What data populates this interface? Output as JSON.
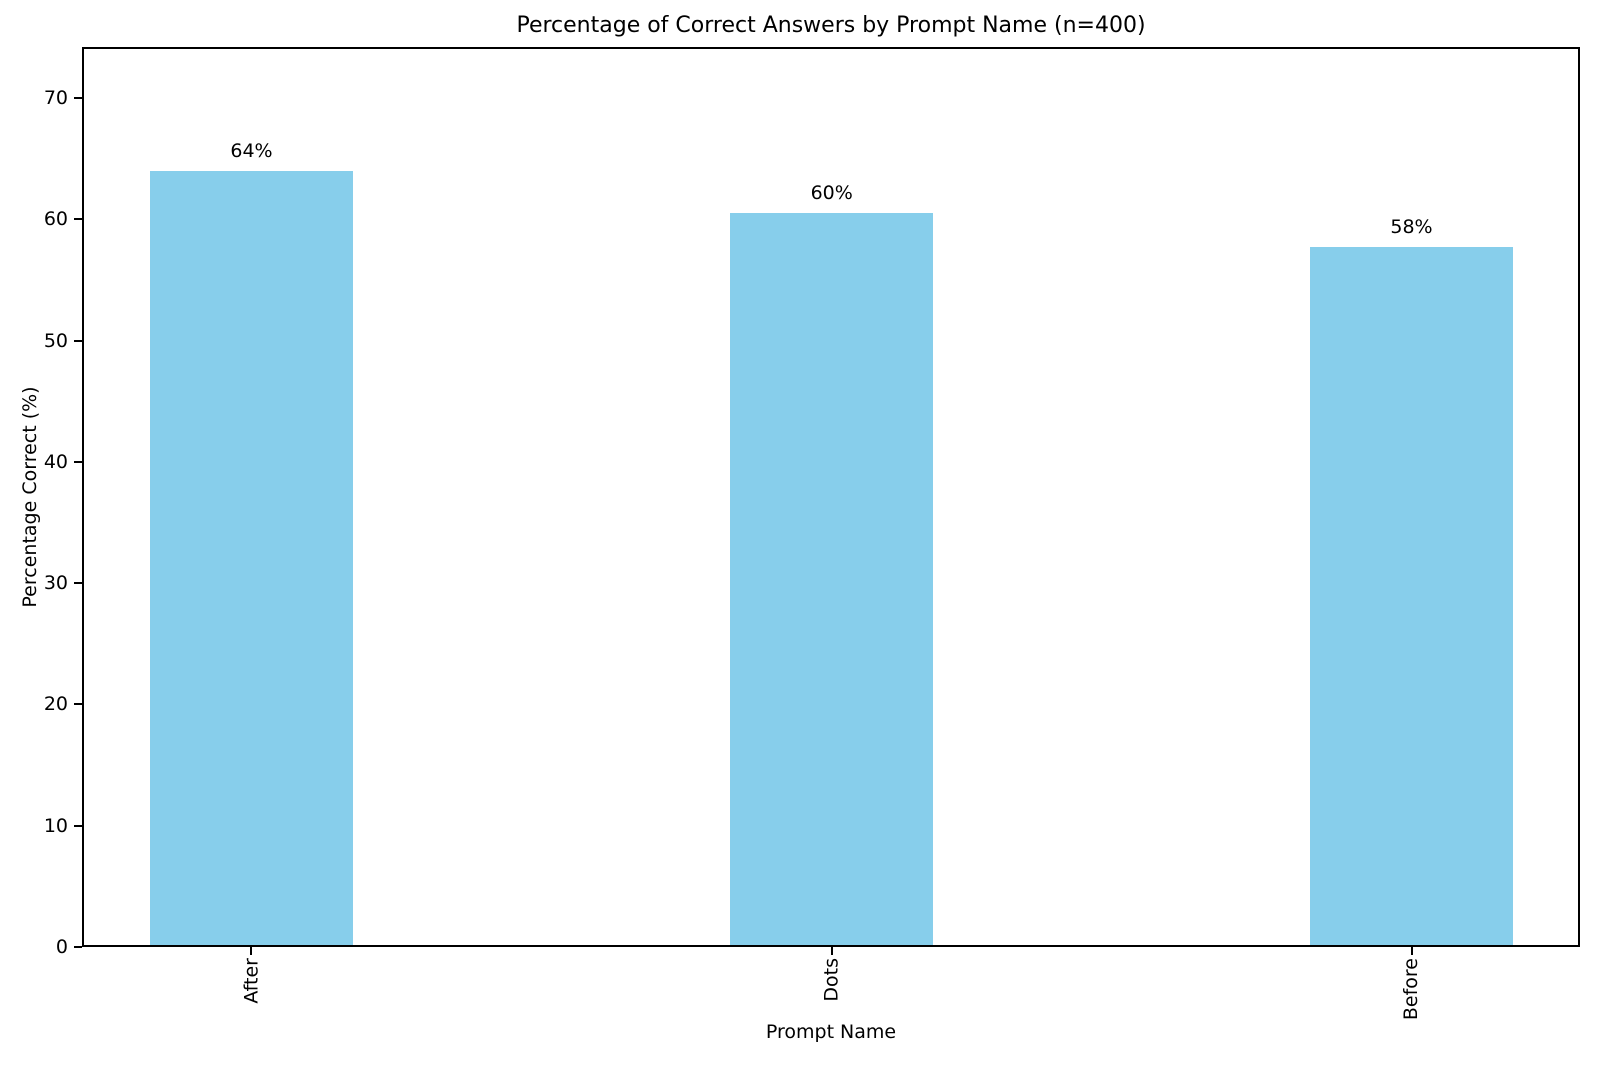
{
  "chart_data": {
    "type": "bar",
    "title": "Percentage of Correct Answers by Prompt Name (n=400)",
    "xlabel": "Prompt Name",
    "ylabel": "Percentage Correct (%)",
    "categories": [
      "After",
      "Dots",
      "Before"
    ],
    "values": [
      64.0,
      60.5,
      57.75
    ],
    "bar_labels": [
      "64%",
      "60%",
      "58%"
    ],
    "n": 400,
    "bar_color": "#87ceeb",
    "axis_color": "#000000",
    "text_color": "#000000",
    "background_color": "#ffffff",
    "ylim": [
      0,
      74.2
    ],
    "yticks": [
      0,
      10,
      20,
      30,
      40,
      50,
      60,
      70
    ],
    "xtick_rotation": 90,
    "grid": false,
    "legend": "none"
  }
}
